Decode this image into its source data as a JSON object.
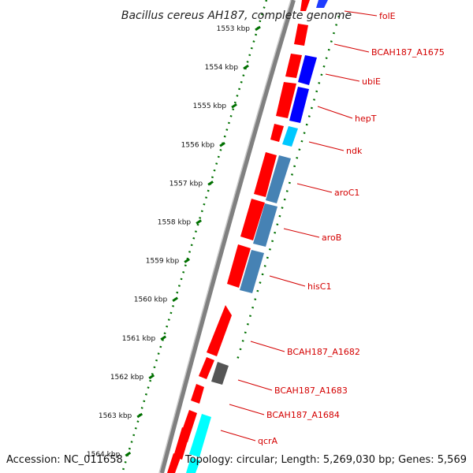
{
  "title": "Bacillus cereus AH187, complete genome",
  "footer": {
    "accession": "Accession: NC_011658",
    "topology": "Topology: circular; Length: 5,269,030 bp; Genes: 5,569"
  },
  "ruler": {
    "unit": "kbp",
    "ticks": [
      "1553 kbp",
      "1554 kbp",
      "1555 kbp",
      "1556 kbp",
      "1557 kbp",
      "1558 kbp",
      "1559 kbp",
      "1560 kbp",
      "1561 kbp",
      "1562 kbp",
      "1563 kbp",
      "1564 kbp"
    ]
  },
  "genes": [
    {
      "name": "folE"
    },
    {
      "name": "BCAH187_A1675"
    },
    {
      "name": "ubiE"
    },
    {
      "name": "hepT"
    },
    {
      "name": "ndk"
    },
    {
      "name": "aroC1"
    },
    {
      "name": "aroB"
    },
    {
      "name": "hisC1"
    },
    {
      "name": "BCAH187_A1682"
    },
    {
      "name": "BCAH187_A1683"
    },
    {
      "name": "BCAH187_A1684"
    },
    {
      "name": "qcrA"
    }
  ],
  "colors": {
    "cds_forward": "#ff0000",
    "gene_blue": "#0000ff",
    "gene_steelblue": "#4682b4",
    "gene_cyan": "#00ffff",
    "gene_lightblue": "#1e90ff",
    "gene_gray": "#555555",
    "backbone": "#808080",
    "ruler_green": "#007000",
    "label_red": "#d40000"
  }
}
